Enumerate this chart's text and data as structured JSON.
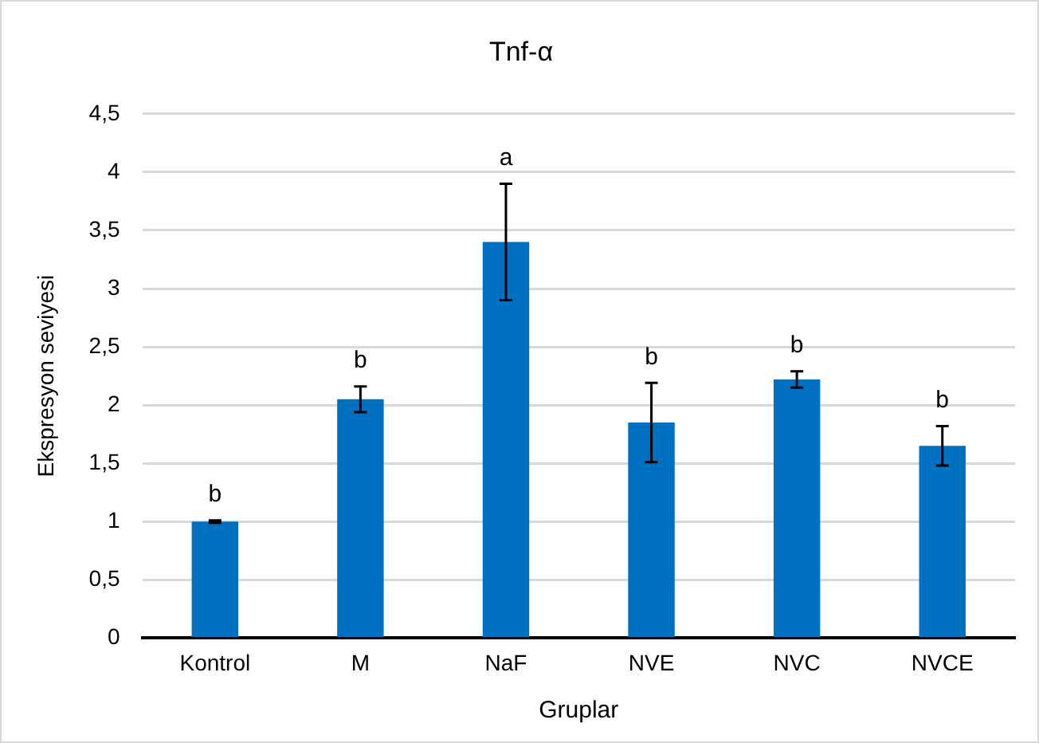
{
  "chart_data": {
    "type": "bar",
    "title": "Tnf-α",
    "xlabel": "Gruplar",
    "ylabel": "Ekspresyon seviyesi",
    "categories": [
      "Kontrol",
      "M",
      "NaF",
      "NVE",
      "NVC",
      "NVCE"
    ],
    "values": [
      1.0,
      2.05,
      3.4,
      1.85,
      2.22,
      1.65
    ],
    "errors": [
      0.01,
      0.11,
      0.5,
      0.34,
      0.07,
      0.17
    ],
    "color": "#0070c0",
    "ylim": [
      0,
      4.5
    ],
    "yticks": [
      0,
      {
        "value": 0.5,
        "label": "0,5"
      },
      1,
      {
        "value": 1.5,
        "label": "1,5"
      },
      2,
      {
        "value": 2.5,
        "label": "2,5"
      },
      3,
      {
        "value": 3.5,
        "label": "3,5"
      },
      4,
      {
        "value": 4.5,
        "label": "4,5"
      }
    ],
    "grid": "y",
    "legend": false,
    "annotations": [
      "b",
      "b",
      "a",
      "b",
      "b",
      "b"
    ]
  }
}
